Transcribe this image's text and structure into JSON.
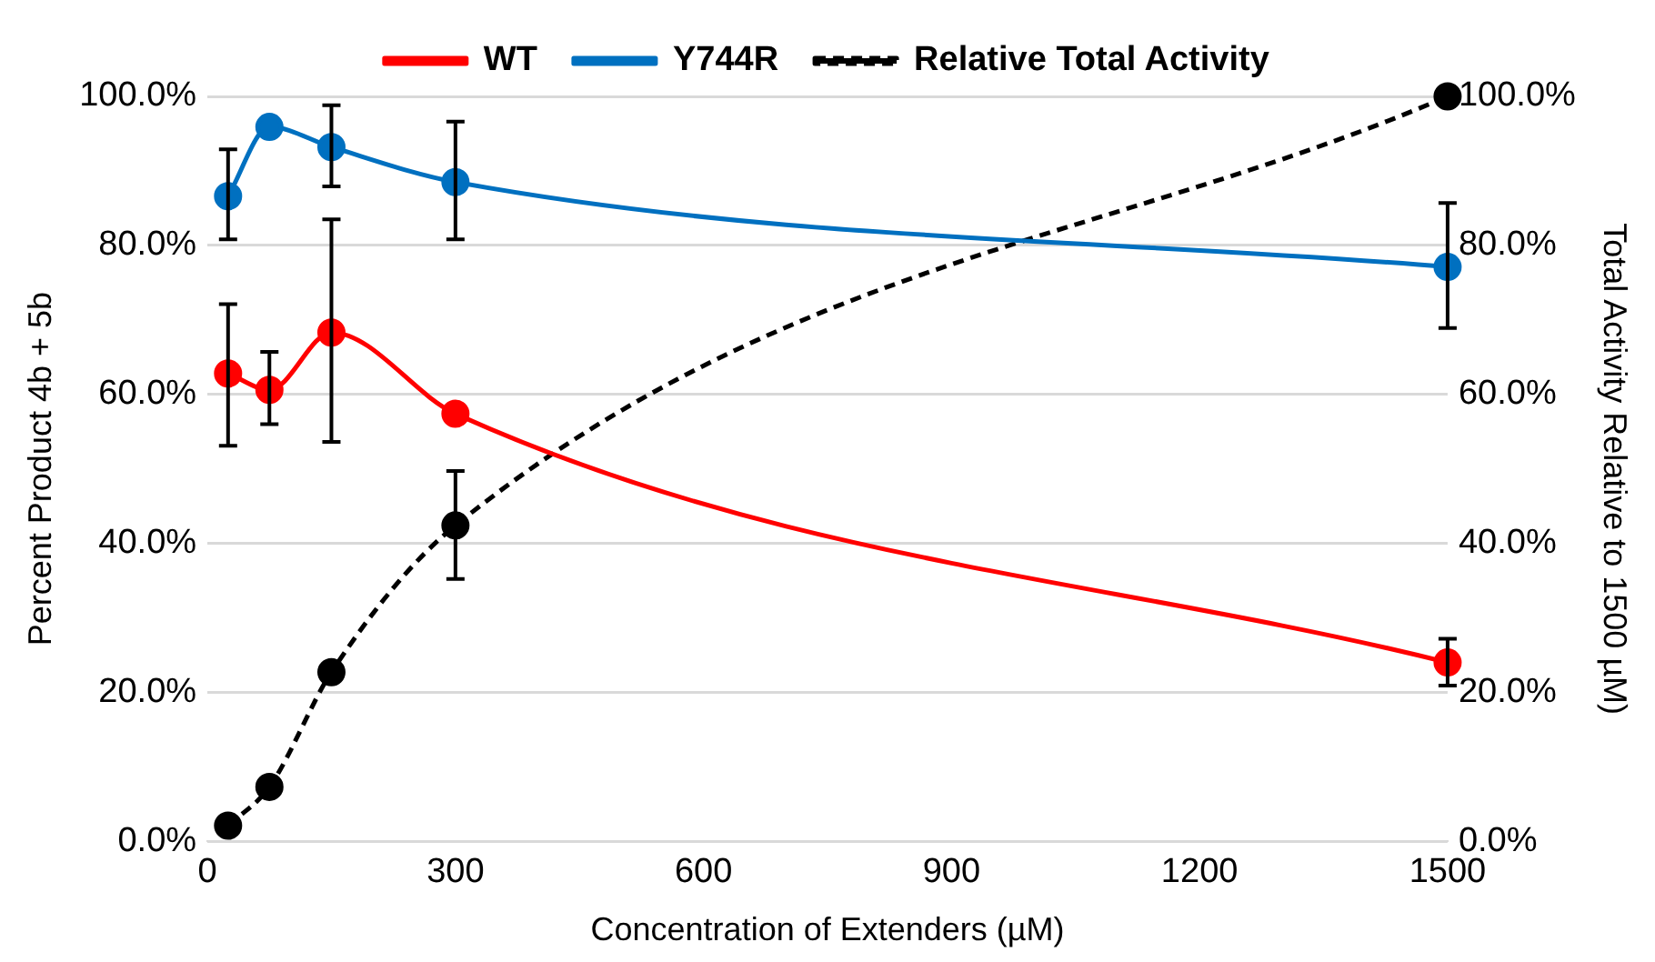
{
  "chart_data": {
    "type": "line",
    "xlabel": "Concentration of Extenders (µM)",
    "ylabel": "Percent Product 4b + 5b",
    "y2label": "Total Activity Relative to 1500 µM)",
    "x": [
      25,
      75,
      150,
      300,
      1500
    ],
    "xlim": [
      0,
      1500
    ],
    "xticks": [
      0,
      300,
      600,
      900,
      1200,
      1500
    ],
    "ylim": [
      0,
      100
    ],
    "yticks": [
      {
        "value": 0,
        "label": "0.0%"
      },
      {
        "value": 20,
        "label": "20.0%"
      },
      {
        "value": 40,
        "label": "40.0%"
      },
      {
        "value": 60,
        "label": "60.0%"
      },
      {
        "value": 80,
        "label": "80.0%"
      },
      {
        "value": 100,
        "label": "100.0%"
      }
    ],
    "y2lim": [
      0,
      100
    ],
    "y2ticks": [
      {
        "value": 0,
        "label": "0.0%"
      },
      {
        "value": 20,
        "label": "20.0%"
      },
      {
        "value": 40,
        "label": "40.0%"
      },
      {
        "value": 60,
        "label": "60.0%"
      },
      {
        "value": 80,
        "label": "80.0%"
      },
      {
        "value": 100,
        "label": "100.0%"
      }
    ],
    "series": [
      {
        "name": "WT",
        "color": "#ff0000",
        "values": [
          62.8,
          60.6,
          68.3,
          57.4,
          24.0
        ],
        "errors": [
          [
            53.1,
            72.1
          ],
          [
            56.0,
            65.7
          ],
          [
            53.6,
            83.5
          ],
          null,
          [
            20.9,
            27.2
          ]
        ]
      },
      {
        "name": "Y744R",
        "color": "#0070c0",
        "values": [
          86.6,
          95.9,
          93.2,
          88.5,
          77.1
        ],
        "errors": [
          [
            80.8,
            92.9
          ],
          null,
          [
            87.9,
            98.8
          ],
          [
            80.8,
            96.6
          ],
          [
            68.9,
            85.7
          ]
        ]
      },
      {
        "name": "Relative Total Activity",
        "color": "#000000",
        "axis": "y2",
        "line_style": "dashed",
        "values": [
          2.1,
          7.3,
          22.7,
          42.4,
          100
        ],
        "errors": [
          null,
          null,
          null,
          [
            35.2,
            49.7
          ],
          null
        ]
      }
    ],
    "grid": "y",
    "legend": "top",
    "marker": "circle",
    "line_style": "solid"
  }
}
